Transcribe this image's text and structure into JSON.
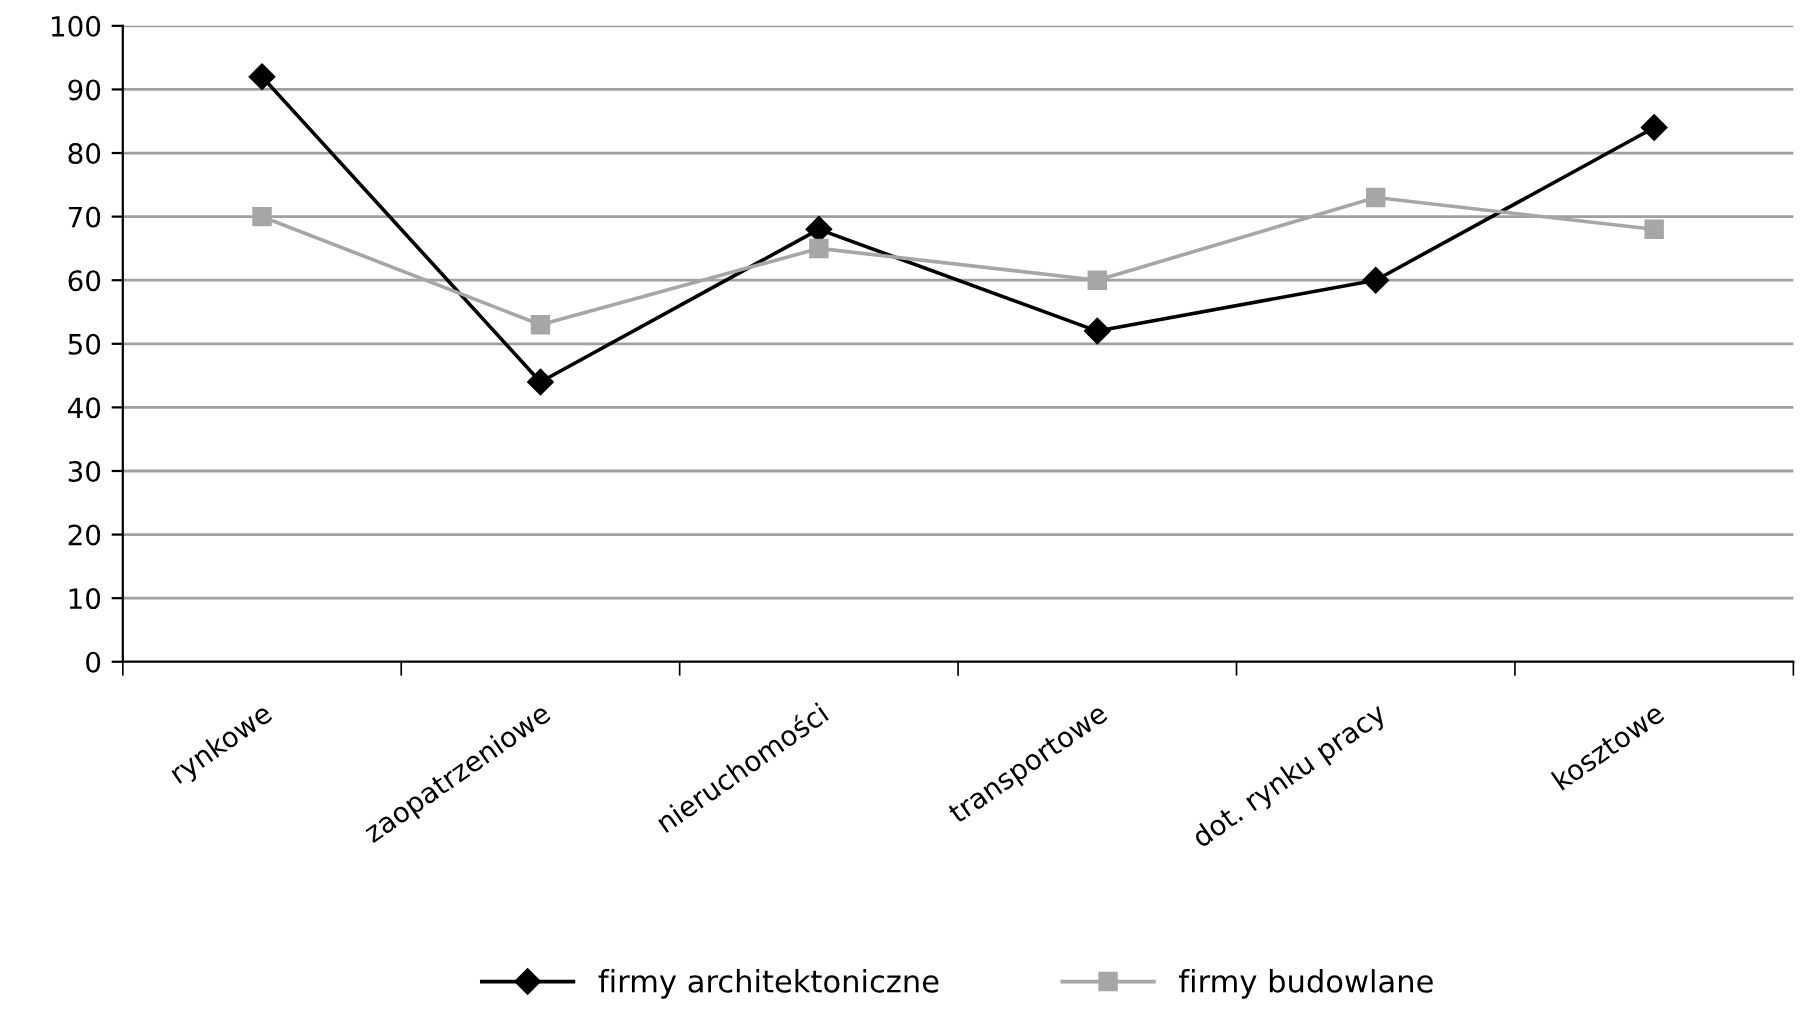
{
  "chart_data": {
    "type": "line",
    "categories": [
      "rynkowe",
      "zaopatrzeniowe",
      "nieruchomości",
      "transportowe",
      "dot. rynku pracy",
      "kosztowe"
    ],
    "series": [
      {
        "name": "firmy architektoniczne",
        "color": "#000000",
        "marker": "diamond",
        "values": [
          92,
          44,
          68,
          52,
          60,
          84
        ]
      },
      {
        "name": "firmy budowlane",
        "color": "#a6a6a6",
        "marker": "square",
        "values": [
          70,
          53,
          65,
          60,
          73,
          68
        ]
      }
    ],
    "ylim": [
      0,
      100
    ],
    "yticks": [
      0,
      10,
      20,
      30,
      40,
      50,
      60,
      70,
      80,
      90,
      100
    ],
    "grid": "y",
    "legend": "bottom",
    "line_style": "solid"
  }
}
